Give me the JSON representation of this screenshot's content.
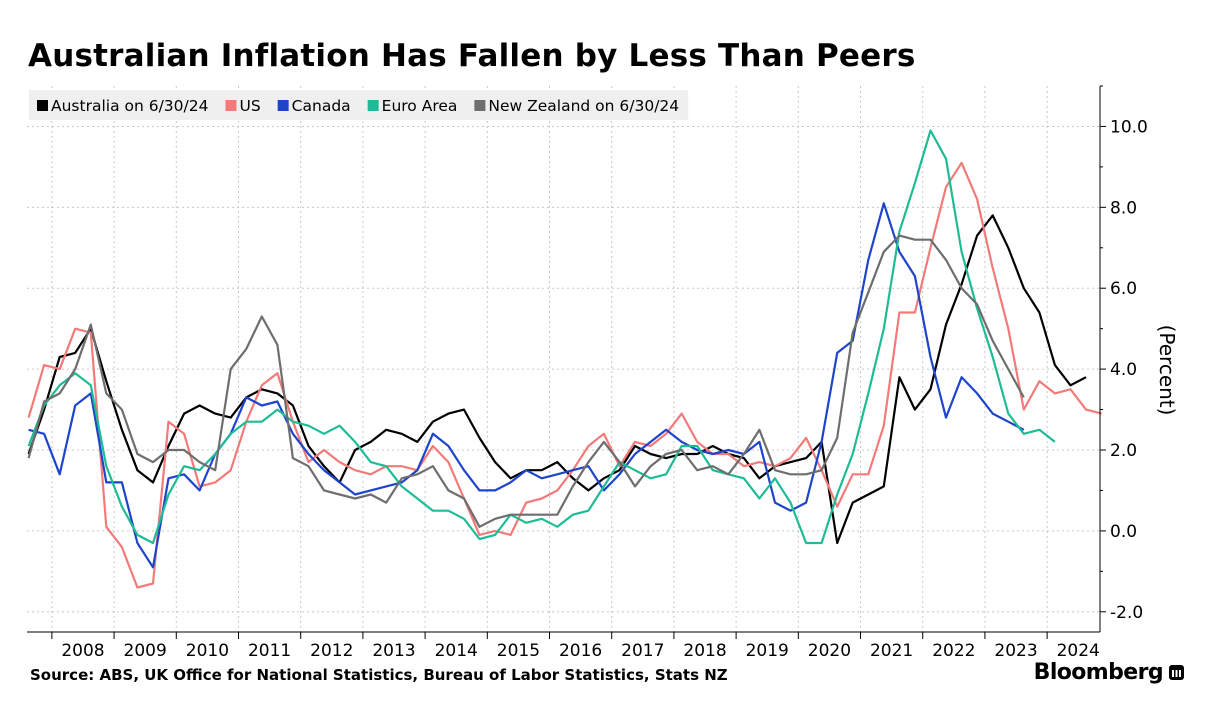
{
  "header": {
    "title": "Australian Inflation Has Fallen by Less Than Peers"
  },
  "footer": {
    "source": "Source: ABS, UK Office for National Statistics, Bureau of Labor Statistics, Stats NZ",
    "brand": "Bloomberg"
  },
  "chart_data": {
    "type": "line",
    "title": "Australian Inflation Has Fallen by Less Than Peers",
    "ylabel": "(Percent)",
    "xlabel": "",
    "ylim": [
      -2.5,
      11.0
    ],
    "xlim": [
      2007.6,
      2024.85
    ],
    "yticks": [
      -2.0,
      0.0,
      2.0,
      4.0,
      6.0,
      8.0,
      10.0
    ],
    "ytick_labels": [
      "-2.0",
      "0.0",
      "2.0",
      "4.0",
      "6.0",
      "8.0",
      "10.0"
    ],
    "xtick_labels": [
      "2008",
      "2009",
      "2010",
      "2011",
      "2012",
      "2013",
      "2014",
      "2015",
      "2016",
      "2017",
      "2018",
      "2019",
      "2020",
      "2021",
      "2022",
      "2023",
      "2024"
    ],
    "x_start": "2007 Q3",
    "x_step": "quarter",
    "grid": true,
    "legend_position": "top-left",
    "series": [
      {
        "name": "Australia on 6/30/24",
        "color": "#000000",
        "values": [
          1.9,
          3.0,
          4.3,
          4.4,
          5.0,
          3.7,
          2.5,
          1.5,
          1.2,
          2.1,
          2.9,
          3.1,
          2.9,
          2.8,
          3.3,
          3.5,
          3.4,
          3.1,
          2.1,
          1.6,
          1.2,
          2.0,
          2.2,
          2.5,
          2.4,
          2.2,
          2.7,
          2.9,
          3.0,
          2.3,
          1.7,
          1.3,
          1.5,
          1.5,
          1.7,
          1.3,
          1.0,
          1.3,
          1.5,
          2.1,
          1.9,
          1.8,
          1.9,
          1.9,
          2.1,
          1.9,
          1.8,
          1.3,
          1.6,
          1.7,
          1.8,
          2.2,
          -0.3,
          0.7,
          0.9,
          1.1,
          3.8,
          3.0,
          3.5,
          5.1,
          6.1,
          7.3,
          7.8,
          7.0,
          6.0,
          5.4,
          4.1,
          3.6,
          3.8
        ]
      },
      {
        "name": "US",
        "color": "#f47a7a",
        "values": [
          2.8,
          4.1,
          4.0,
          5.0,
          4.9,
          0.1,
          -0.4,
          -1.4,
          -1.3,
          2.7,
          2.4,
          1.1,
          1.2,
          1.5,
          2.7,
          3.6,
          3.9,
          2.7,
          1.7,
          2.0,
          1.7,
          1.5,
          1.4,
          1.6,
          1.6,
          1.5,
          2.1,
          1.7,
          0.8,
          -0.1,
          0.0,
          -0.1,
          0.7,
          0.8,
          1.0,
          1.5,
          2.1,
          2.4,
          1.6,
          2.2,
          2.1,
          2.4,
          2.9,
          2.2,
          1.9,
          1.9,
          1.6,
          1.7,
          1.6,
          1.8,
          2.3,
          1.5,
          0.6,
          1.4,
          1.4,
          2.6,
          5.4,
          5.4,
          7.0,
          8.5,
          9.1,
          8.2,
          6.5,
          5.0,
          3.0,
          3.7,
          3.4,
          3.5,
          3.0,
          2.9
        ]
      },
      {
        "name": "Canada",
        "color": "#1f44cc",
        "values": [
          2.5,
          2.4,
          1.4,
          3.1,
          3.4,
          1.2,
          1.2,
          -0.3,
          -0.9,
          1.3,
          1.4,
          1.0,
          1.9,
          2.4,
          3.3,
          3.1,
          3.2,
          2.4,
          1.9,
          1.5,
          1.2,
          0.9,
          1.0,
          1.1,
          1.2,
          1.5,
          2.4,
          2.1,
          1.5,
          1.0,
          1.0,
          1.2,
          1.5,
          1.3,
          1.4,
          1.5,
          1.6,
          1.0,
          1.4,
          1.9,
          2.2,
          2.5,
          2.2,
          2.0,
          1.9,
          2.0,
          1.9,
          2.2,
          0.7,
          0.5,
          0.7,
          2.2,
          4.4,
          4.7,
          6.7,
          8.1,
          6.9,
          6.3,
          4.3,
          2.8,
          3.8,
          3.4,
          2.9,
          2.7,
          2.5
        ]
      },
      {
        "name": "Euro Area",
        "color": "#1ebc96",
        "values": [
          2.1,
          3.1,
          3.6,
          3.9,
          3.6,
          1.6,
          0.6,
          -0.1,
          -0.3,
          0.9,
          1.6,
          1.5,
          1.9,
          2.4,
          2.7,
          2.7,
          3.0,
          2.7,
          2.6,
          2.4,
          2.6,
          2.2,
          1.7,
          1.6,
          1.1,
          0.8,
          0.5,
          0.5,
          0.3,
          -0.2,
          -0.1,
          0.4,
          0.2,
          0.3,
          0.1,
          0.4,
          0.5,
          1.1,
          1.7,
          1.5,
          1.3,
          1.4,
          2.1,
          2.1,
          1.5,
          1.4,
          1.3,
          0.8,
          1.3,
          0.7,
          -0.3,
          -0.3,
          0.9,
          1.9,
          3.4,
          5.0,
          7.4,
          8.6,
          9.9,
          9.2,
          6.9,
          5.5,
          4.3,
          2.9,
          2.4,
          2.5,
          2.2
        ]
      },
      {
        "name": "New Zealand on 6/30/24",
        "color": "#6e6e6e",
        "values": [
          1.8,
          3.2,
          3.4,
          4.0,
          5.1,
          3.4,
          3.0,
          1.9,
          1.7,
          2.0,
          2.0,
          1.7,
          1.5,
          4.0,
          4.5,
          5.3,
          4.6,
          1.8,
          1.6,
          1.0,
          0.9,
          0.8,
          0.9,
          0.7,
          1.3,
          1.4,
          1.6,
          1.0,
          0.8,
          0.1,
          0.3,
          0.4,
          0.4,
          0.4,
          0.4,
          1.1,
          1.7,
          2.2,
          1.7,
          1.1,
          1.6,
          1.9,
          2.0,
          1.5,
          1.6,
          1.4,
          1.9,
          2.5,
          1.5,
          1.4,
          1.4,
          1.5,
          2.3,
          4.9,
          5.9,
          6.9,
          7.3,
          7.2,
          7.2,
          6.7,
          6.0,
          5.6,
          4.7,
          4.0,
          3.3
        ]
      }
    ]
  }
}
